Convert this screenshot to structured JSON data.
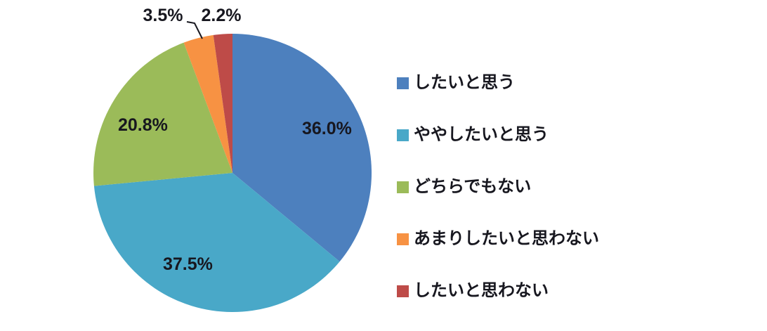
{
  "figure": {
    "background": "#ffffff"
  },
  "chart_data": {
    "type": "pie",
    "categories": [
      "したいと思う",
      "ややしたいと思う",
      "どちらでもない",
      "あまりしたいと思わない",
      "したいと思わない"
    ],
    "values": [
      36.0,
      37.5,
      20.8,
      3.5,
      2.2
    ],
    "labels": [
      "36.0%",
      "37.5%",
      "20.8%",
      "3.5%",
      "2.2%"
    ],
    "colors": [
      "#4d80be",
      "#49a8c8",
      "#9bbb59",
      "#f79243",
      "#be4b48"
    ],
    "label_color": "#17171f",
    "start_angle_deg": 0,
    "direction": "clockwise",
    "legend_position": "right",
    "legend_marker": "square"
  }
}
